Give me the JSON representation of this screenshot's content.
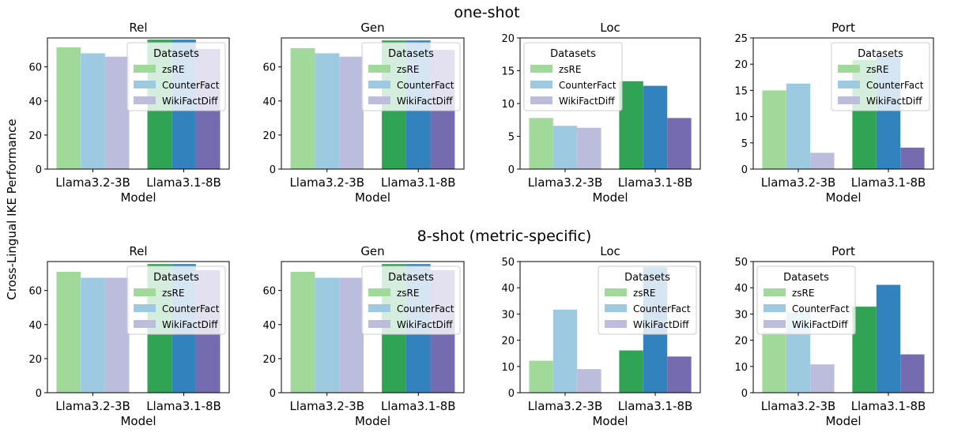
{
  "figure": {
    "ylabel": "Cross-Lingual IKE Performance",
    "rows": [
      {
        "title": "one-shot"
      },
      {
        "title": "8-shot (metric-specific)"
      }
    ],
    "legend_title": "Datasets",
    "colors": {
      "light": [
        "#a1d99b",
        "#9ecae1",
        "#bcbddc"
      ],
      "dark": [
        "#31a354",
        "#3182bd",
        "#756bb1"
      ]
    }
  },
  "chart_data": [
    {
      "type": "bar",
      "row": 0,
      "col": 0,
      "title": "Rel",
      "xlabel": "Model",
      "ylabel": "",
      "categories": [
        "Llama3.2-3B",
        "Llama3.1-8B"
      ],
      "ylim": [
        0,
        77
      ],
      "yticks": [
        0,
        20,
        40,
        60
      ],
      "legend_position": "upper-right",
      "series": [
        {
          "name": "zsRE",
          "values": [
            71.5,
            76.0
          ]
        },
        {
          "name": "CounterFact",
          "values": [
            68.0,
            76.0
          ]
        },
        {
          "name": "WikiFactDiff",
          "values": [
            66.0,
            70.5
          ]
        }
      ]
    },
    {
      "type": "bar",
      "row": 0,
      "col": 1,
      "title": "Gen",
      "xlabel": "Model",
      "ylabel": "",
      "categories": [
        "Llama3.2-3B",
        "Llama3.1-8B"
      ],
      "ylim": [
        0,
        77
      ],
      "yticks": [
        0,
        20,
        40,
        60
      ],
      "legend_position": "upper-right",
      "series": [
        {
          "name": "zsRE",
          "values": [
            71.0,
            75.5
          ]
        },
        {
          "name": "CounterFact",
          "values": [
            68.0,
            75.5
          ]
        },
        {
          "name": "WikiFactDiff",
          "values": [
            66.0,
            70.0
          ]
        }
      ]
    },
    {
      "type": "bar",
      "row": 0,
      "col": 2,
      "title": "Loc",
      "xlabel": "Model",
      "ylabel": "",
      "categories": [
        "Llama3.2-3B",
        "Llama3.1-8B"
      ],
      "ylim": [
        0,
        20
      ],
      "yticks": [
        0,
        5,
        10,
        15,
        20
      ],
      "legend_position": "upper-left",
      "series": [
        {
          "name": "zsRE",
          "values": [
            7.8,
            13.4
          ]
        },
        {
          "name": "CounterFact",
          "values": [
            6.6,
            12.7
          ]
        },
        {
          "name": "WikiFactDiff",
          "values": [
            6.3,
            7.8
          ]
        }
      ]
    },
    {
      "type": "bar",
      "row": 0,
      "col": 3,
      "title": "Port",
      "xlabel": "Model",
      "ylabel": "",
      "categories": [
        "Llama3.2-3B",
        "Llama3.1-8B"
      ],
      "ylim": [
        0,
        25
      ],
      "yticks": [
        0,
        5,
        10,
        15,
        20,
        25
      ],
      "legend_position": "upper-right",
      "series": [
        {
          "name": "zsRE",
          "values": [
            15.0,
            20.8
          ]
        },
        {
          "name": "CounterFact",
          "values": [
            16.3,
            21.5
          ]
        },
        {
          "name": "WikiFactDiff",
          "values": [
            3.1,
            4.1
          ]
        }
      ]
    },
    {
      "type": "bar",
      "row": 1,
      "col": 0,
      "title": "Rel",
      "xlabel": "Model",
      "ylabel": "",
      "categories": [
        "Llama3.2-3B",
        "Llama3.1-8B"
      ],
      "ylim": [
        0,
        77
      ],
      "yticks": [
        0,
        20,
        40,
        60
      ],
      "legend_position": "upper-right",
      "series": [
        {
          "name": "zsRE",
          "values": [
            71.0,
            75.5
          ]
        },
        {
          "name": "CounterFact",
          "values": [
            67.5,
            75.5
          ]
        },
        {
          "name": "WikiFactDiff",
          "values": [
            67.5,
            72.0
          ]
        }
      ]
    },
    {
      "type": "bar",
      "row": 1,
      "col": 1,
      "title": "Gen",
      "xlabel": "Model",
      "ylabel": "",
      "categories": [
        "Llama3.2-3B",
        "Llama3.1-8B"
      ],
      "ylim": [
        0,
        77
      ],
      "yticks": [
        0,
        20,
        40,
        60
      ],
      "legend_position": "upper-right",
      "series": [
        {
          "name": "zsRE",
          "values": [
            71.0,
            75.5
          ]
        },
        {
          "name": "CounterFact",
          "values": [
            67.5,
            75.5
          ]
        },
        {
          "name": "WikiFactDiff",
          "values": [
            67.5,
            72.0
          ]
        }
      ]
    },
    {
      "type": "bar",
      "row": 1,
      "col": 2,
      "title": "Loc",
      "xlabel": "Model",
      "ylabel": "",
      "categories": [
        "Llama3.2-3B",
        "Llama3.1-8B"
      ],
      "ylim": [
        0,
        50
      ],
      "yticks": [
        0,
        10,
        20,
        30,
        40,
        50
      ],
      "legend_position": "upper-right",
      "series": [
        {
          "name": "zsRE",
          "values": [
            12.2,
            16.1
          ]
        },
        {
          "name": "CounterFact",
          "values": [
            31.7,
            47.8
          ]
        },
        {
          "name": "WikiFactDiff",
          "values": [
            9.0,
            13.8
          ]
        }
      ]
    },
    {
      "type": "bar",
      "row": 1,
      "col": 3,
      "title": "Port",
      "xlabel": "Model",
      "ylabel": "",
      "categories": [
        "Llama3.2-3B",
        "Llama3.1-8B"
      ],
      "ylim": [
        0,
        50
      ],
      "yticks": [
        0,
        10,
        20,
        30,
        40,
        50
      ],
      "legend_position": "upper-left",
      "series": [
        {
          "name": "zsRE",
          "values": [
            23.0,
            32.8
          ]
        },
        {
          "name": "CounterFact",
          "values": [
            30.5,
            41.1
          ]
        },
        {
          "name": "WikiFactDiff",
          "values": [
            10.8,
            14.6
          ]
        }
      ]
    }
  ]
}
